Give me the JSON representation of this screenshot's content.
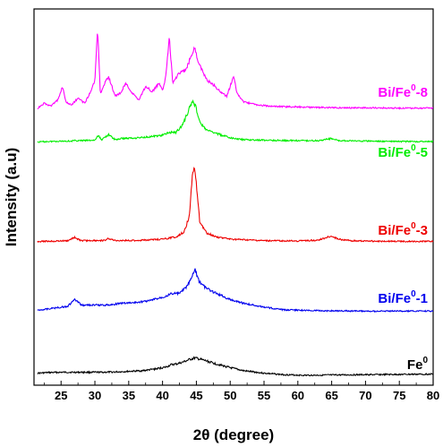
{
  "chart_data": {
    "type": "line",
    "xlabel": "2θ (degree)",
    "ylabel": "Intensity (a.u)",
    "xlim": [
      21,
      80
    ],
    "xticks": [
      25,
      30,
      35,
      40,
      45,
      50,
      55,
      60,
      65,
      70,
      75,
      80
    ],
    "y_ticks_shown": false,
    "grid": false,
    "series": [
      {
        "name_base": "Fe",
        "name_sup": "0",
        "name_suffix": "",
        "color": "#000000",
        "x": [
          21.5,
          23,
          25,
          27,
          29,
          31,
          33,
          35,
          37,
          39,
          40.5,
          41.3,
          42,
          43,
          44,
          44.8,
          45.5,
          46.5,
          48,
          50,
          52,
          55,
          58,
          61,
          65,
          70,
          75,
          80
        ],
        "y": [
          0.1,
          0.12,
          0.13,
          0.13,
          0.13,
          0.13,
          0.14,
          0.16,
          0.18,
          0.24,
          0.3,
          0.38,
          0.4,
          0.46,
          0.55,
          0.6,
          0.56,
          0.5,
          0.4,
          0.28,
          0.18,
          0.1,
          0.05,
          0.03,
          0.04,
          0.05,
          0.06,
          0.07
        ]
      },
      {
        "name_base": "Bi/Fe",
        "name_sup": "0",
        "name_suffix": "-1",
        "color": "#0000ee",
        "x": [
          21.5,
          24,
          26,
          27,
          28,
          29,
          30,
          32,
          34,
          36,
          38,
          40,
          41.5,
          42.5,
          43.5,
          44.2,
          44.8,
          45.4,
          46,
          47,
          48.5,
          50,
          52,
          55,
          58,
          62,
          65,
          70,
          75,
          80
        ],
        "y": [
          0.05,
          0.12,
          0.18,
          0.4,
          0.22,
          0.22,
          0.22,
          0.22,
          0.28,
          0.3,
          0.36,
          0.48,
          0.6,
          0.6,
          0.8,
          1.05,
          1.4,
          1.0,
          0.85,
          0.7,
          0.55,
          0.4,
          0.28,
          0.15,
          0.06,
          0.04,
          0.03,
          0.02,
          0.02,
          0.02
        ]
      },
      {
        "name_base": "Bi/Fe",
        "name_sup": "0",
        "name_suffix": "-3",
        "color": "#ee0000",
        "x": [
          21.5,
          24,
          26,
          27,
          28,
          30,
          31.5,
          32,
          33,
          36,
          40,
          42,
          43.2,
          44,
          44.4,
          44.7,
          45,
          45.5,
          46.5,
          48,
          50,
          55,
          60,
          63,
          64.5,
          65,
          66,
          68,
          72,
          76,
          80
        ],
        "y": [
          0.02,
          0.03,
          0.05,
          0.2,
          0.05,
          0.06,
          0.06,
          0.15,
          0.06,
          0.06,
          0.12,
          0.22,
          0.45,
          1.2,
          3.0,
          3.3,
          2.6,
          0.9,
          0.4,
          0.22,
          0.12,
          0.05,
          0.04,
          0.08,
          0.22,
          0.25,
          0.12,
          0.05,
          0.03,
          0.02,
          0.02
        ]
      },
      {
        "name_base": "Bi/Fe",
        "name_sup": "0",
        "name_suffix": "-5",
        "color": "#00ee00",
        "x": [
          21.5,
          23,
          25,
          26.5,
          27,
          28,
          30,
          30.5,
          31,
          32,
          33,
          34,
          36,
          38,
          40,
          41,
          42,
          43,
          43.8,
          44.5,
          45,
          45.5,
          46.5,
          48,
          50,
          52,
          55,
          60,
          63,
          65,
          66,
          70,
          75,
          80
        ],
        "y": [
          0.02,
          0.04,
          0.06,
          0.06,
          0.08,
          0.08,
          0.1,
          0.3,
          0.12,
          0.35,
          0.12,
          0.18,
          0.2,
          0.25,
          0.32,
          0.45,
          0.45,
          0.8,
          1.4,
          1.9,
          1.5,
          0.9,
          0.55,
          0.4,
          0.2,
          0.12,
          0.1,
          0.08,
          0.08,
          0.18,
          0.08,
          0.06,
          0.04,
          0.04
        ]
      },
      {
        "name_base": "Bi/Fe",
        "name_sup": "0",
        "name_suffix": "-8",
        "color": "#ff00ff",
        "x": [
          21.5,
          22.5,
          23.5,
          24.5,
          25.2,
          25.7,
          26.5,
          27.5,
          28.5,
          29.5,
          30,
          30.4,
          30.8,
          31.5,
          32,
          33,
          34,
          34.5,
          35.5,
          36.5,
          37.5,
          38.5,
          39.5,
          40,
          40.5,
          41,
          41.5,
          42.5,
          43.5,
          44.7,
          45.5,
          46.5,
          47.5,
          48.5,
          49.5,
          50.5,
          51,
          51.5,
          52,
          54,
          56,
          58,
          60,
          62,
          64,
          66,
          70,
          75,
          80
        ],
        "y": [
          0.05,
          0.2,
          0.12,
          0.3,
          0.7,
          0.25,
          0.15,
          0.35,
          0.2,
          0.6,
          0.9,
          2.4,
          0.5,
          0.8,
          1.0,
          0.4,
          0.55,
          0.8,
          0.5,
          0.3,
          0.7,
          0.55,
          0.8,
          0.6,
          1.0,
          2.15,
          0.8,
          1.1,
          1.2,
          1.85,
          1.3,
          0.9,
          0.75,
          0.55,
          0.4,
          1.0,
          0.5,
          0.35,
          0.25,
          0.15,
          0.12,
          0.1,
          0.1,
          0.08,
          0.08,
          0.07,
          0.07,
          0.06,
          0.06
        ]
      }
    ]
  }
}
